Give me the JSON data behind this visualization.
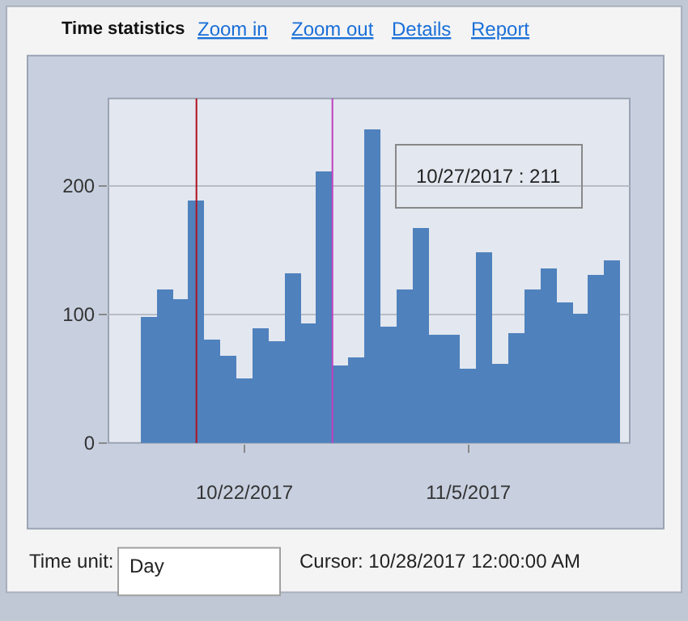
{
  "chart_data": {
    "type": "bar",
    "title": "Time statistics",
    "x": [
      "2017-10-16",
      "2017-10-17",
      "2017-10-18",
      "2017-10-19",
      "2017-10-20",
      "2017-10-21",
      "2017-10-22",
      "2017-10-23",
      "2017-10-24",
      "2017-10-25",
      "2017-10-26",
      "2017-10-27",
      "2017-10-28",
      "2017-10-29",
      "2017-10-30",
      "2017-10-31",
      "2017-11-01",
      "2017-11-02",
      "2017-11-03",
      "2017-11-04",
      "2017-11-05",
      "2017-11-06",
      "2017-11-07",
      "2017-11-08",
      "2017-11-09",
      "2017-11-10",
      "2017-11-11",
      "2017-11-12",
      "2017-11-13",
      "2017-11-14"
    ],
    "values": [
      98,
      119,
      112,
      189,
      80,
      68,
      51,
      89,
      79,
      132,
      93,
      211,
      60,
      67,
      244,
      91,
      120,
      167,
      84,
      84,
      58,
      148,
      62,
      85,
      119,
      136,
      110,
      101,
      131,
      142
    ],
    "color": "#4f81bd",
    "xlim": [
      "2017-10-13T12:00",
      "2017-11-15T02:00"
    ],
    "xticks": [
      {
        "value": "2017-10-22",
        "label": "10/22/2017"
      },
      {
        "value": "2017-11-05",
        "label": "11/5/2017"
      }
    ],
    "ylim": [
      0,
      268
    ],
    "yticks": [
      0,
      100,
      200
    ],
    "grid": "y",
    "ref_lines": [
      {
        "axis": "x",
        "value": "2017-10-19",
        "color": "#b01020"
      },
      {
        "axis": "x",
        "value": "2017-10-27T12:00",
        "color": "#c040c0"
      }
    ],
    "annotations": [
      "10/27/2017 : 211",
      "Zoom in",
      "Zoom out",
      "Details",
      "Report",
      "Time unit:",
      "Day",
      "Cursor: 10/28/2017 12:00:00 AM"
    ]
  }
}
